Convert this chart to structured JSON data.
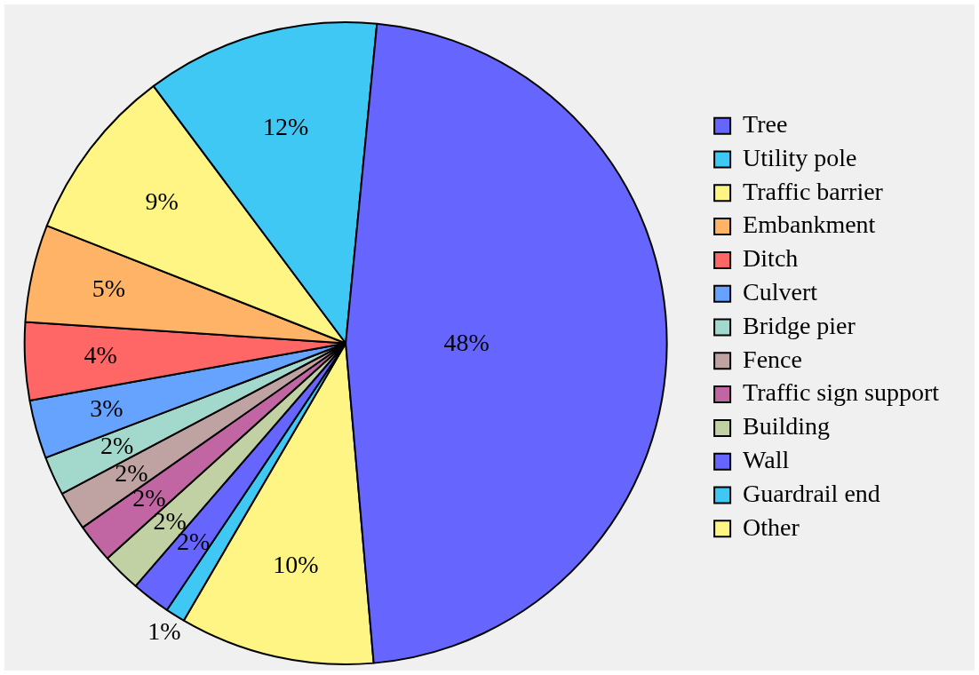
{
  "chart_data": {
    "type": "pie",
    "categories": [
      "Tree",
      "Utility pole",
      "Traffic barrier",
      "Embankment",
      "Ditch",
      "Culvert",
      "Bridge pier",
      "Fence",
      "Traffic sign support",
      "Building",
      "Wall",
      "Guardrail end",
      "Other"
    ],
    "values": [
      48,
      12,
      9,
      5,
      4,
      3,
      2,
      2,
      2,
      2,
      2,
      1,
      10
    ],
    "colors": [
      "#6666ff",
      "#40c8f4",
      "#fff585",
      "#ffb366",
      "#ff6666",
      "#66a3ff",
      "#a3d9cc",
      "#bfa3a3",
      "#c266a3",
      "#c2d1a3",
      "#6666ff",
      "#40c8f4",
      "#fff585"
    ],
    "value_labels": [
      "48%",
      "12%",
      "9%",
      "5%",
      "4%",
      "3%",
      "2%",
      "2%",
      "2%",
      "2%",
      "2%",
      "1%",
      "10%"
    ],
    "legend": "right"
  }
}
